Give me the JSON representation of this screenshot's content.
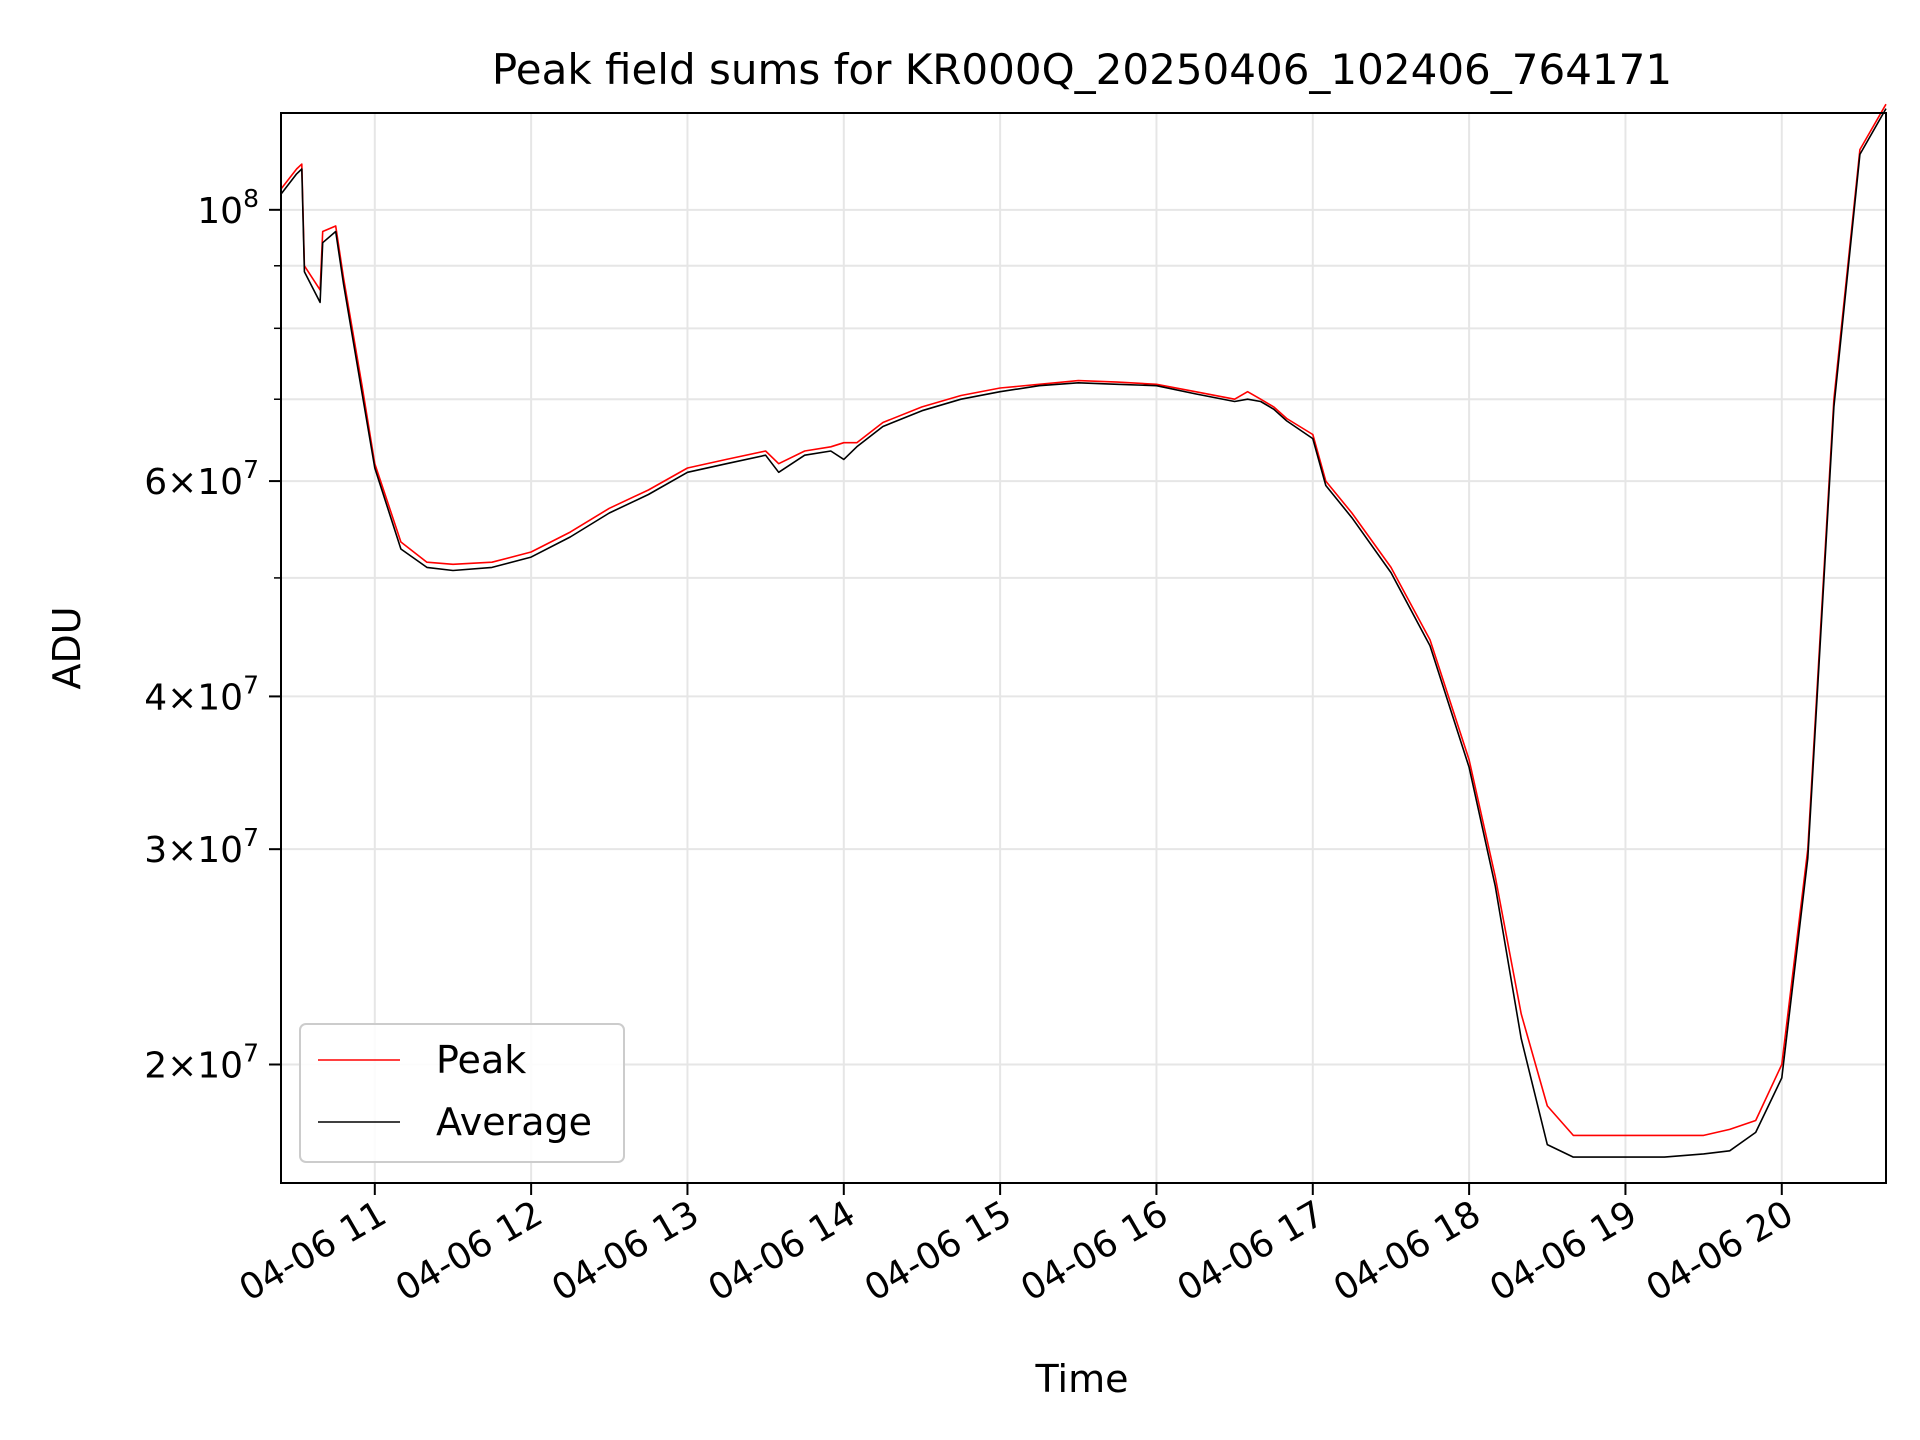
{
  "chart_data": {
    "type": "line",
    "title": "Peak field sums for KR000Q_20250406_102406_764171",
    "xlabel": "Time",
    "ylabel": "ADU",
    "x_axis": "datetime (hours on 2025-04-06)",
    "xlim": [
      "04-06 10:24",
      "04-06 20:40"
    ],
    "x_ticks": [
      "04-06 11",
      "04-06 12",
      "04-06 13",
      "04-06 14",
      "04-06 15",
      "04-06 16",
      "04-06 17",
      "04-06 18",
      "04-06 19",
      "04-06 20"
    ],
    "y_scale": "log",
    "ylim": [
      16000000,
      120000000
    ],
    "y_major_ticks": [
      {
        "value": 100000000,
        "base": "10",
        "exp": "8",
        "mant": ""
      },
      {
        "value": 60000000,
        "base": "10",
        "exp": "7",
        "mant": "6"
      },
      {
        "value": 40000000,
        "base": "10",
        "exp": "7",
        "mant": "4"
      },
      {
        "value": 30000000,
        "base": "10",
        "exp": "7",
        "mant": "3"
      },
      {
        "value": 20000000,
        "base": "10",
        "exp": "7",
        "mant": "2"
      }
    ],
    "y_minor_grid": [
      50000000,
      70000000,
      80000000,
      90000000
    ],
    "grid": true,
    "legend_position": "lower-left",
    "series": [
      {
        "name": "Peak",
        "color": "#ff0000",
        "x": [
          "10:24",
          "10:30",
          "10:32",
          "10:33",
          "10:39",
          "10:40",
          "10:45",
          "10:48",
          "10:55",
          "11:00",
          "11:10",
          "11:20",
          "11:30",
          "11:45",
          "12:00",
          "12:15",
          "12:30",
          "12:45",
          "13:00",
          "13:15",
          "13:30",
          "13:35",
          "13:45",
          "13:55",
          "14:00",
          "14:05",
          "14:15",
          "14:30",
          "14:45",
          "15:00",
          "15:15",
          "15:30",
          "15:45",
          "16:00",
          "16:15",
          "16:30",
          "16:35",
          "16:40",
          "16:45",
          "16:50",
          "17:00",
          "17:05",
          "17:15",
          "17:30",
          "17:45",
          "18:00",
          "18:10",
          "18:20",
          "18:30",
          "18:40",
          "18:50",
          "19:00",
          "19:15",
          "19:30",
          "19:40",
          "19:50",
          "20:00",
          "20:10",
          "20:20",
          "20:30",
          "20:40"
        ],
        "y": [
          104000000,
          108000000,
          109000000,
          90000000,
          86000000,
          96000000,
          97000000,
          88000000,
          72000000,
          62000000,
          53500000,
          51500000,
          51300000,
          51500000,
          52500000,
          54500000,
          57000000,
          59000000,
          61500000,
          62500000,
          63500000,
          62000000,
          63500000,
          64000000,
          64500000,
          64500000,
          67000000,
          69000000,
          70500000,
          71500000,
          72000000,
          72500000,
          72300000,
          72000000,
          71000000,
          70000000,
          71000000,
          70000000,
          69000000,
          67500000,
          65500000,
          60000000,
          56500000,
          51000000,
          44500000,
          35500000,
          28500000,
          22000000,
          18500000,
          17500000,
          17500000,
          17500000,
          17500000,
          17500000,
          17700000,
          18000000,
          20000000,
          30000000,
          70000000,
          112000000,
          122000000
        ]
      },
      {
        "name": "Average",
        "color": "#000000",
        "x": [
          "10:24",
          "10:30",
          "10:32",
          "10:33",
          "10:39",
          "10:40",
          "10:45",
          "10:48",
          "10:55",
          "11:00",
          "11:10",
          "11:20",
          "11:30",
          "11:45",
          "12:00",
          "12:15",
          "12:30",
          "12:45",
          "13:00",
          "13:15",
          "13:30",
          "13:35",
          "13:45",
          "13:55",
          "14:00",
          "14:05",
          "14:15",
          "14:30",
          "14:45",
          "15:00",
          "15:15",
          "15:30",
          "15:45",
          "16:00",
          "16:15",
          "16:30",
          "16:35",
          "16:40",
          "16:45",
          "16:50",
          "17:00",
          "17:05",
          "17:15",
          "17:30",
          "17:45",
          "18:00",
          "18:10",
          "18:20",
          "18:30",
          "18:40",
          "18:50",
          "19:00",
          "19:15",
          "19:30",
          "19:40",
          "19:50",
          "20:00",
          "20:10",
          "20:20",
          "20:30",
          "20:40"
        ],
        "y": [
          103000000,
          107000000,
          108000000,
          89000000,
          84000000,
          94000000,
          96000000,
          87000000,
          71000000,
          61500000,
          52800000,
          51000000,
          50700000,
          51000000,
          52000000,
          54000000,
          56500000,
          58500000,
          61000000,
          62000000,
          63000000,
          61000000,
          63000000,
          63500000,
          62500000,
          64000000,
          66500000,
          68500000,
          70000000,
          71000000,
          71800000,
          72200000,
          72000000,
          71800000,
          70700000,
          69700000,
          70000000,
          69700000,
          68700000,
          67200000,
          65000000,
          59500000,
          56000000,
          50500000,
          44000000,
          35000000,
          28000000,
          21000000,
          17200000,
          16800000,
          16800000,
          16800000,
          16800000,
          16900000,
          17000000,
          17600000,
          19500000,
          29500000,
          69000000,
          111000000,
          121000000
        ]
      }
    ]
  }
}
